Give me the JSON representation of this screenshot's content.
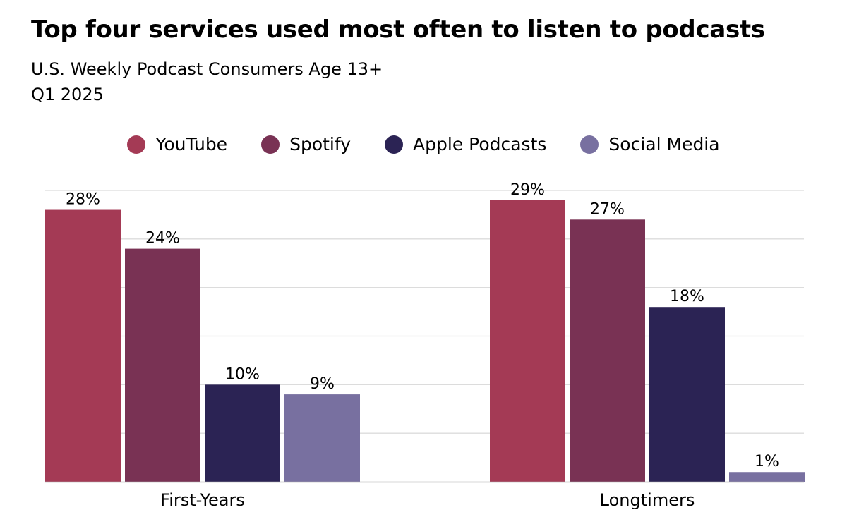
{
  "chart_data": {
    "type": "bar",
    "title": "Top four services used most often to listen to podcasts",
    "subtitle": "U.S. Weekly Podcast Consumers Age 13+",
    "period": "Q1 2025",
    "xlabel": "",
    "ylabel": "",
    "ylim": [
      0,
      30
    ],
    "grid": true,
    "gridlines": [
      5,
      10,
      15,
      20,
      25,
      30
    ],
    "legend_position": "top-center",
    "categories": [
      "First-Years",
      "Longtimers"
    ],
    "series": [
      {
        "name": "YouTube",
        "color": "#A43A55",
        "values": [
          28,
          29
        ],
        "labels": [
          "28%",
          "29%"
        ]
      },
      {
        "name": "Spotify",
        "color": "#793254",
        "values": [
          24,
          27
        ],
        "labels": [
          "24%",
          "27%"
        ]
      },
      {
        "name": "Apple Podcasts",
        "color": "#2B2354",
        "values": [
          10,
          18
        ],
        "labels": [
          "10%",
          "18%"
        ]
      },
      {
        "name": "Social Media",
        "color": "#7870A0",
        "values": [
          9,
          1
        ],
        "labels": [
          "9%",
          "1%"
        ]
      }
    ]
  }
}
